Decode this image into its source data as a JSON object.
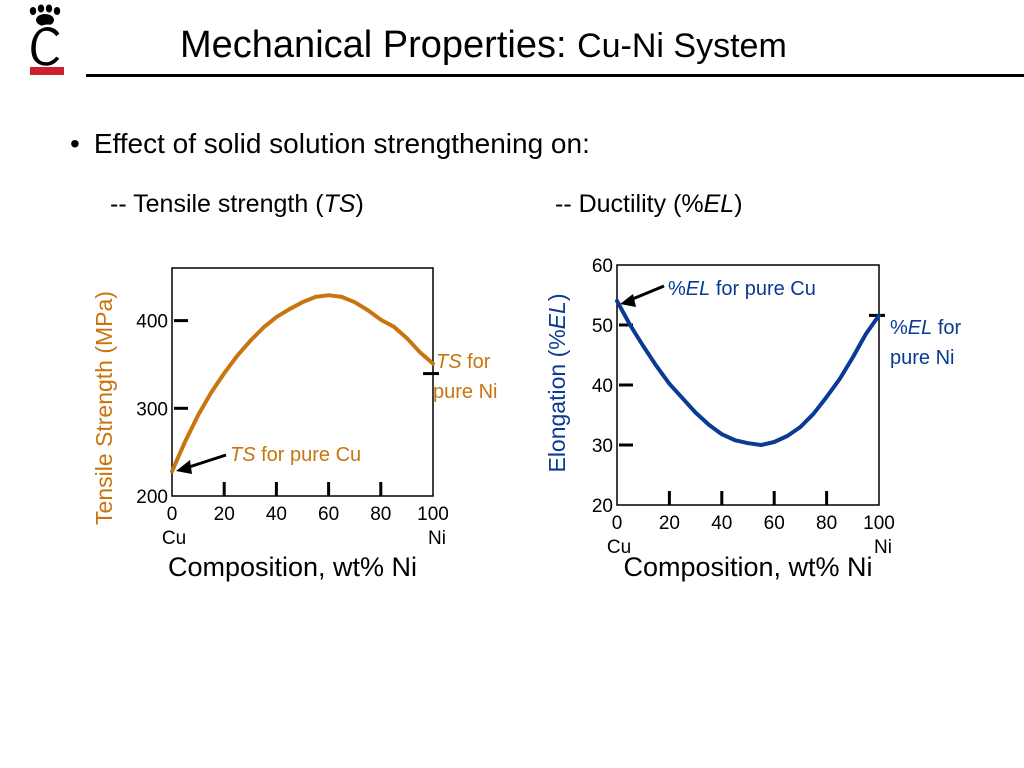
{
  "slide": {
    "title_main": "Mechanical Properties:",
    "title_sub": "Cu-Ni System",
    "bullet": "Effect of solid solution strengthening on:",
    "subhead_ts": {
      "prefix": "-- Tensile strength (",
      "italic": "TS",
      "suffix": ")"
    },
    "subhead_el": {
      "prefix": "-- Ductility (%",
      "italic": "EL",
      "suffix": ")"
    }
  },
  "colors": {
    "orange": "#C8750F",
    "blue": "#0A3A94",
    "logo_red": "#D0202E",
    "black": "#000000"
  },
  "icons": {
    "logo": "university-bearcat-c-logo"
  },
  "chart_data": [
    {
      "type": "line",
      "xlabel": "Composition, wt% Ni",
      "ylabel": "Tensile Strength (MPa)",
      "xlim": [
        0,
        100
      ],
      "ylim": [
        200,
        460
      ],
      "x_ticks": [
        0,
        20,
        40,
        60,
        80,
        100
      ],
      "x_tick_labels": [
        "0",
        "20",
        "40",
        "60",
        "80",
        "100"
      ],
      "x_end_labels": {
        "left": "Cu",
        "right": "Ni"
      },
      "y_ticks": [
        200,
        300,
        400
      ],
      "y_tick_labels": [
        "200",
        "300",
        "400"
      ],
      "grid": false,
      "series": [
        {
          "color": "#C8750F",
          "x": [
            0,
            5,
            10,
            15,
            20,
            25,
            30,
            35,
            40,
            45,
            50,
            55,
            60,
            65,
            70,
            75,
            80,
            85,
            90,
            95,
            100
          ],
          "y": [
            228,
            262,
            292,
            318,
            340,
            360,
            377,
            392,
            404,
            413,
            421,
            427,
            429,
            427,
            421,
            412,
            401,
            393,
            380,
            364,
            351
          ]
        }
      ],
      "annotations": [
        {
          "italic": "TS",
          "text": " for",
          "line2": "pure Ni",
          "x": 100,
          "y": 351
        },
        {
          "italic": "TS",
          "text": " for pure Cu",
          "x": 0,
          "y": 228
        }
      ]
    },
    {
      "type": "line",
      "xlabel": "Composition, wt% Ni",
      "ylabel_prefix": "Elongation (%",
      "ylabel_italic": "EL",
      "ylabel_suffix": ")",
      "xlim": [
        0,
        100
      ],
      "ylim": [
        20,
        60
      ],
      "x_ticks": [
        0,
        20,
        40,
        60,
        80,
        100
      ],
      "x_tick_labels": [
        "0",
        "20",
        "40",
        "60",
        "80",
        "100"
      ],
      "x_end_labels": {
        "left": "Cu",
        "right": "Ni"
      },
      "y_ticks": [
        20,
        30,
        40,
        50,
        60
      ],
      "y_tick_labels": [
        "20",
        "30",
        "40",
        "50",
        "60"
      ],
      "grid": false,
      "series": [
        {
          "color": "#0A3A94",
          "x": [
            0,
            5,
            10,
            15,
            20,
            25,
            30,
            35,
            40,
            45,
            50,
            55,
            60,
            65,
            70,
            75,
            80,
            85,
            90,
            95,
            100
          ],
          "y": [
            54,
            50,
            46.5,
            43.2,
            40.2,
            37.8,
            35.4,
            33.4,
            31.8,
            30.8,
            30.3,
            30,
            30.5,
            31.5,
            33,
            35.2,
            38,
            41,
            44.6,
            48.5,
            51.6
          ]
        }
      ],
      "annotations": [
        {
          "prefix": "%",
          "italic": "EL",
          "text": " for pure Cu",
          "x": 0,
          "y": 54
        },
        {
          "prefix": "%",
          "italic": "EL",
          "text": " for",
          "line2": "pure Ni",
          "x": 100,
          "y": 51.6
        }
      ]
    }
  ]
}
